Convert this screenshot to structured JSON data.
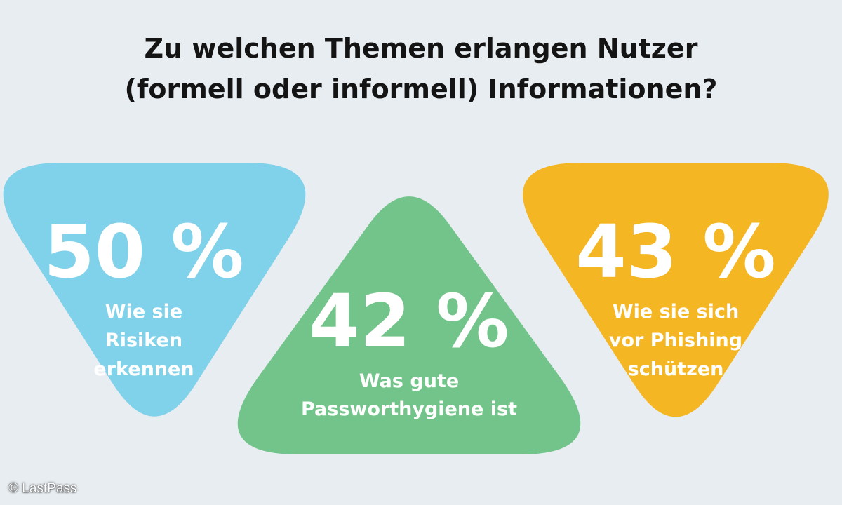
{
  "title_lines": [
    "Zu welchen Themen erlangen Nutzer",
    "(formell oder informell) Informationen?"
  ],
  "chart_data": {
    "type": "table",
    "unit": "%",
    "items": [
      {
        "value": 50,
        "label": "50 %",
        "description": [
          "Wie sie",
          "Risiken",
          "erkennen"
        ],
        "color": "#80d1ea",
        "orientation": "down"
      },
      {
        "value": 42,
        "label": "42 %",
        "description": [
          "Was gute",
          "Passworthygiene ist"
        ],
        "color": "#72c48a",
        "orientation": "up"
      },
      {
        "value": 43,
        "label": "43 %",
        "description": [
          "Wie sie sich",
          "vor Phishing",
          "schützen"
        ],
        "color": "#f5b624",
        "orientation": "down"
      }
    ]
  },
  "credit": "© LastPass"
}
